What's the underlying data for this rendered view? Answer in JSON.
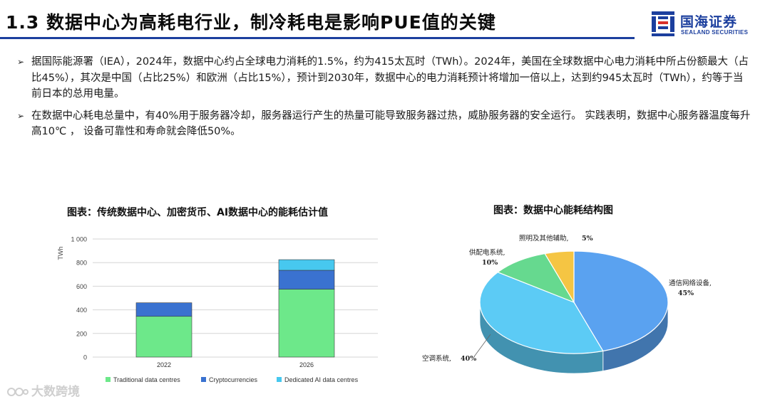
{
  "header": {
    "title": "1.3 数据中心为高耗电行业，制冷耗电是影响PUE值的关键",
    "logo_cn": "国海证券",
    "logo_en": "SEALAND SECURITIES",
    "accent": "#1c3f9e"
  },
  "bullets": [
    "据国际能源署（IEA），2024年，数据中心约占全球电力消耗的1.5%，约为415太瓦时（TWh）。2024年，美国在全球数据中心电力消耗中所占份额最大（占比45%），其次是中国（占比25%）和欧洲（占比15%），预计到2030年，数据中心的电力消耗预计将增加一倍以上，达到约945太瓦时（TWh），约等于当前日本的总用电量。",
    "在数据中心耗电总量中，有40%用于服务器冷却，服务器运行产生的热量可能导致服务器过热，威胁服务器的安全运行。 实践表明，数据中心服务器温度每升高10℃ ， 设备可靠性和寿命就会降低50%。"
  ],
  "watermark": "大数跨境",
  "chart_data": [
    {
      "type": "bar",
      "stacked": true,
      "title": "图表：传统数据中心、加密货币、AI数据中心的能耗估计值",
      "ylabel": "TWh",
      "ylim": [
        0,
        1000
      ],
      "yticks": [
        "0",
        "200",
        "400",
        "600",
        "800",
        "1 000"
      ],
      "categories": [
        "2022",
        "2026"
      ],
      "series": [
        {
          "name": "Traditional data centres",
          "values": [
            345,
            575
          ],
          "color": "#6de88a"
        },
        {
          "name": "Cryptocurrencies",
          "values": [
            115,
            160
          ],
          "color": "#3a72d0"
        },
        {
          "name": "Dedicated AI data centres",
          "values": [
            0,
            90
          ],
          "color": "#47c8ef"
        }
      ],
      "grid": true,
      "legend": "bottom"
    },
    {
      "type": "pie",
      "title": "图表：数据中心能耗结构图",
      "slices": [
        {
          "label": "通信网络设备,",
          "value": 45,
          "pct": "45%",
          "color": "#5aa2f0"
        },
        {
          "label": "空调系统,",
          "value": 40,
          "pct": "40%",
          "color": "#5ccbf5"
        },
        {
          "label": "供配电系统,",
          "value": 10,
          "pct": "10%",
          "color": "#66d98f"
        },
        {
          "label": "照明及其他辅助,",
          "value": 5,
          "pct": "5%",
          "color": "#f5c543"
        }
      ]
    }
  ]
}
